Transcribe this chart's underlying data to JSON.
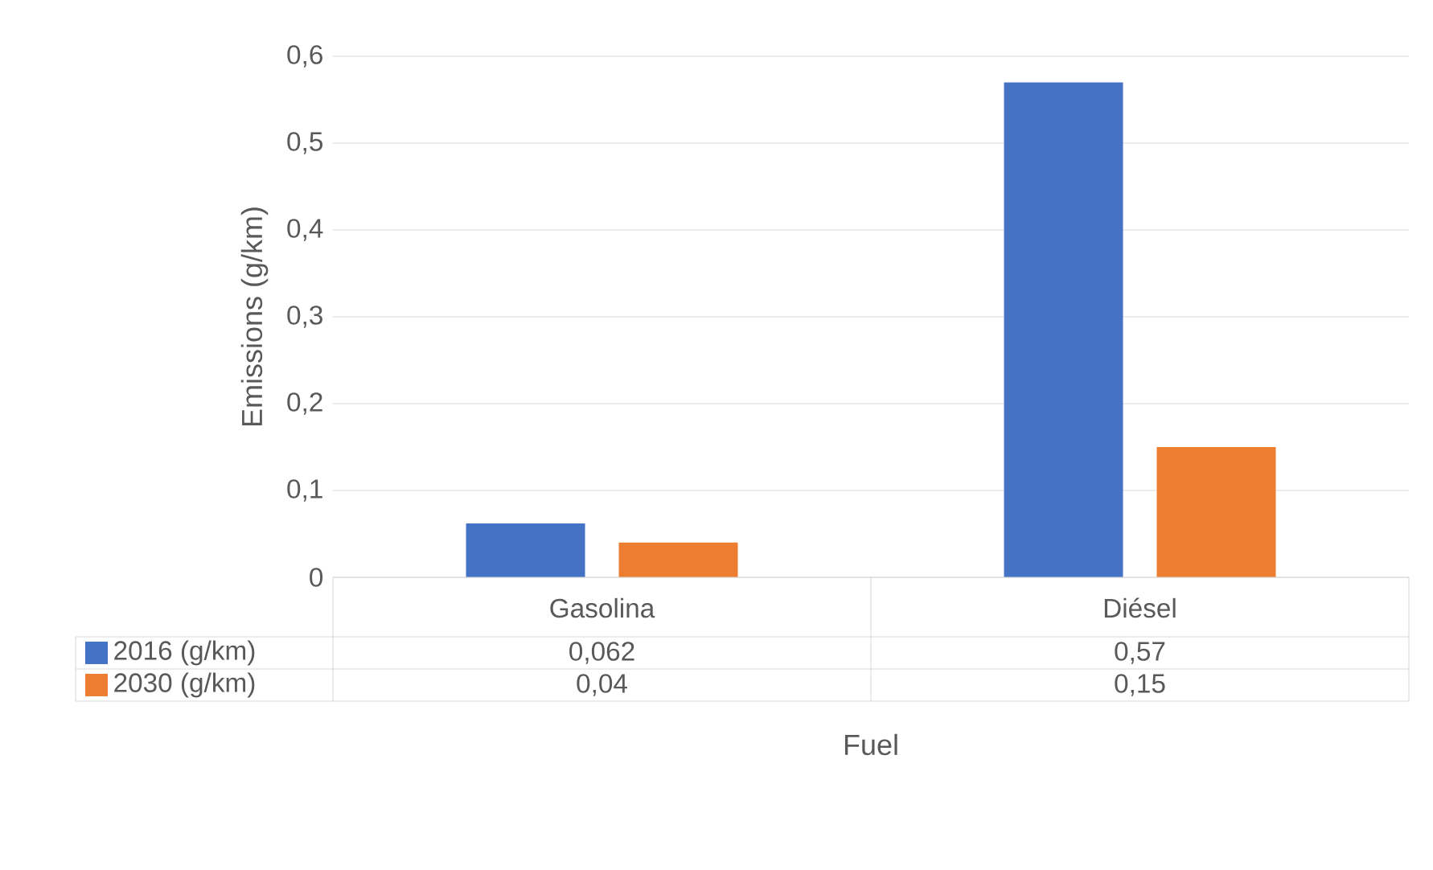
{
  "chart_data": {
    "type": "bar",
    "xlabel": "Fuel",
    "ylabel": "Emissions (g/km)",
    "categories": [
      "Gasolina",
      "Diésel"
    ],
    "series": [
      {
        "name": "2016 (g/km)",
        "color": "#4472c4",
        "values": [
          0.062,
          0.57
        ],
        "value_labels": [
          "0,062",
          "0,57"
        ]
      },
      {
        "name": "2030 (g/km)",
        "color": "#ed7d31",
        "values": [
          0.04,
          0.15
        ],
        "value_labels": [
          "0,04",
          "0,15"
        ]
      }
    ],
    "ylim": [
      0,
      0.6
    ],
    "yticks": [
      {
        "value": 0,
        "label": "0"
      },
      {
        "value": 0.1,
        "label": "0,1"
      },
      {
        "value": 0.2,
        "label": "0,2"
      },
      {
        "value": 0.3,
        "label": "0,3"
      },
      {
        "value": 0.4,
        "label": "0,4"
      },
      {
        "value": 0.5,
        "label": "0,5"
      },
      {
        "value": 0.6,
        "label": "0,6"
      }
    ],
    "grid": "y",
    "legend": "bottom"
  }
}
